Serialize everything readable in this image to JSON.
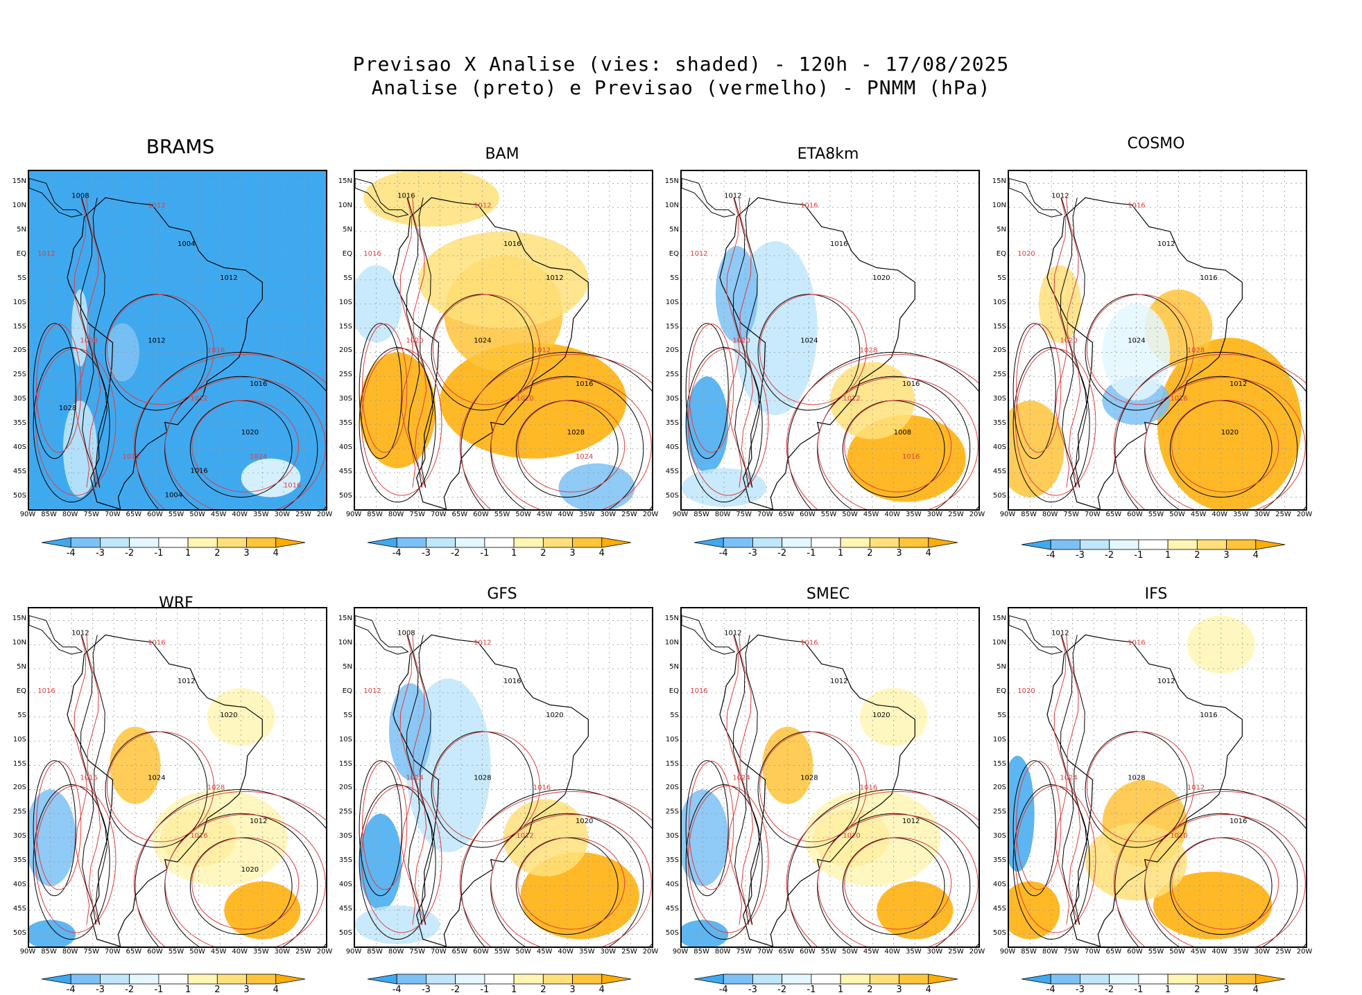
{
  "header": {
    "line1": "Previsao X Analise (vies: shaded) - 120h - 17/08/2025",
    "line2": "Analise (preto) e Previsao (vermelho) - PNMM (hPa)"
  },
  "colors": {
    "neg4": "#3fa9f0",
    "neg3": "#7cc1f5",
    "neg2": "#bfe6fb",
    "neg1": "#e4f7ff",
    "zero": "#ffffff",
    "pos1": "#fff6b4",
    "pos2": "#ffe07a",
    "pos3": "#ffc43a",
    "pos4": "#ffad00",
    "analysis_contour": "#000000",
    "forecast_contour": "#e03c3c"
  },
  "colorbar_labels": [
    "-4",
    "-3",
    "-2",
    "-1",
    "1",
    "2",
    "3",
    "4"
  ],
  "lat_labels": [
    "15N",
    "10N",
    "5N",
    "EQ",
    "5S",
    "10S",
    "15S",
    "20S",
    "25S",
    "30S",
    "35S",
    "40S",
    "45S",
    "50S"
  ],
  "lon_labels": [
    "90W",
    "85W",
    "80W",
    "75W",
    "70W",
    "65W",
    "60W",
    "55W",
    "50W",
    "45W",
    "40W",
    "35W",
    "30W",
    "25W",
    "20W"
  ],
  "panels": [
    {
      "name": "BRAMS",
      "bias": "strong-negative",
      "contour_labels": [
        "1008",
        "1012",
        "1004",
        "1012",
        "1012",
        "1008",
        "1012",
        "1016",
        "1016",
        "1012",
        "1020",
        "1024",
        "1028",
        "1012",
        "1016",
        "1016",
        "1004"
      ]
    },
    {
      "name": "BAM",
      "bias": "positive",
      "contour_labels": [
        "1016",
        "1012",
        "1016",
        "1016",
        "1012",
        "1020",
        "1024",
        "1012",
        "1016",
        "1020",
        "1028",
        "1024"
      ]
    },
    {
      "name": "ETA8km",
      "bias": "mixed-negative",
      "contour_labels": [
        "1012",
        "1016",
        "1016",
        "1012",
        "1020",
        "1020",
        "1024",
        "1028",
        "1016",
        "1012",
        "1008",
        "1016"
      ]
    },
    {
      "name": "COSMO",
      "bias": "positive-east",
      "contour_labels": [
        "1012",
        "1016",
        "1012",
        "1020",
        "1016",
        "1020",
        "1024",
        "1028",
        "1012",
        "1016",
        "1020"
      ]
    },
    {
      "name": "WRF",
      "bias": "mixed",
      "contour_labels": [
        "1012",
        "1016",
        "1012",
        "1016",
        "1020",
        "1016",
        "1024",
        "1028",
        "1012",
        "1016",
        "1020"
      ]
    },
    {
      "name": "GFS",
      "bias": "mixed-negative",
      "contour_labels": [
        "1008",
        "1012",
        "1016",
        "1012",
        "1020",
        "1024",
        "1028",
        "1016",
        "1020",
        "1012"
      ]
    },
    {
      "name": "SMEC",
      "bias": "mixed",
      "contour_labels": [
        "1012",
        "1016",
        "1012",
        "1016",
        "1020",
        "1024",
        "1028",
        "1016",
        "1012",
        "1020"
      ]
    },
    {
      "name": "IFS",
      "bias": "positive-south",
      "contour_labels": [
        "1012",
        "1016",
        "1012",
        "1020",
        "1016",
        "1024",
        "1028",
        "1012",
        "1016",
        "1020"
      ]
    }
  ]
}
